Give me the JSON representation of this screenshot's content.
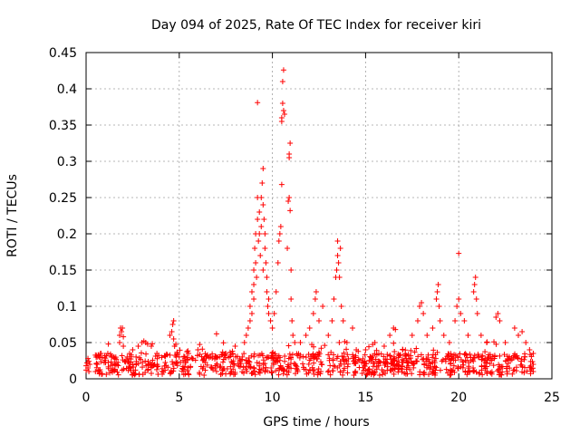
{
  "chart_data": {
    "type": "scatter",
    "title": "Day 094 of 2025, Rate Of TEC Index for receiver kiri",
    "xlabel": "GPS time / hours",
    "ylabel": "ROTI / TECUs",
    "xlim": [
      0,
      25
    ],
    "ylim": [
      0,
      0.45
    ],
    "x_ticks": [
      "0",
      "5",
      "10",
      "15",
      "20",
      "25"
    ],
    "y_ticks": [
      "0",
      "0.05",
      "0.1",
      "0.15",
      "0.2",
      "0.25",
      "0.3",
      "0.35",
      "0.4",
      "0.45"
    ],
    "grid": true,
    "marker": "+",
    "color": "#ff0000",
    "baseline_range": [
      0.005,
      0.035
    ],
    "series": [
      {
        "name": "ROTI",
        "points": [
          [
            0.0,
            0.012
          ],
          [
            0.0,
            0.018
          ],
          [
            0.05,
            0.022
          ],
          [
            0.1,
            0.015
          ],
          [
            0.1,
            0.028
          ],
          [
            0.15,
            0.01
          ],
          [
            0.15,
            0.024
          ],
          [
            0.2,
            0.02
          ],
          [
            0.5,
            0.01
          ],
          [
            0.6,
            0.02
          ],
          [
            0.7,
            0.03
          ],
          [
            0.8,
            0.035
          ],
          [
            1.0,
            0.032
          ],
          [
            1.5,
            0.03
          ],
          [
            1.8,
            0.05
          ],
          [
            1.8,
            0.06
          ],
          [
            1.85,
            0.07
          ],
          [
            1.9,
            0.065
          ],
          [
            1.95,
            0.07
          ],
          [
            2.0,
            0.058
          ],
          [
            2.0,
            0.045
          ],
          [
            2.5,
            0.04
          ],
          [
            2.8,
            0.045
          ],
          [
            3.0,
            0.05
          ],
          [
            3.1,
            0.052
          ],
          [
            3.2,
            0.05
          ],
          [
            3.3,
            0.048
          ],
          [
            3.5,
            0.045
          ],
          [
            3.8,
            0.035
          ],
          [
            4.5,
            0.06
          ],
          [
            4.6,
            0.065
          ],
          [
            4.65,
            0.075
          ],
          [
            4.7,
            0.08
          ],
          [
            4.7,
            0.055
          ],
          [
            4.75,
            0.045
          ],
          [
            5.5,
            0.035
          ],
          [
            6.0,
            0.04
          ],
          [
            6.5,
            0.032
          ],
          [
            7.0,
            0.062
          ],
          [
            7.5,
            0.035
          ],
          [
            8.0,
            0.045
          ],
          [
            8.5,
            0.05
          ],
          [
            8.6,
            0.06
          ],
          [
            8.7,
            0.07
          ],
          [
            8.8,
            0.08
          ],
          [
            8.8,
            0.1
          ],
          [
            8.9,
            0.12
          ],
          [
            8.9,
            0.09
          ],
          [
            9.0,
            0.13
          ],
          [
            9.0,
            0.15
          ],
          [
            9.0,
            0.11
          ],
          [
            9.05,
            0.18
          ],
          [
            9.1,
            0.16
          ],
          [
            9.1,
            0.2
          ],
          [
            9.15,
            0.14
          ],
          [
            9.2,
            0.22
          ],
          [
            9.2,
            0.25
          ],
          [
            9.2,
            0.381
          ],
          [
            9.25,
            0.19
          ],
          [
            9.3,
            0.2
          ],
          [
            9.3,
            0.23
          ],
          [
            9.35,
            0.17
          ],
          [
            9.4,
            0.21
          ],
          [
            9.4,
            0.25
          ],
          [
            9.45,
            0.27
          ],
          [
            9.5,
            0.29
          ],
          [
            9.5,
            0.24
          ],
          [
            9.5,
            0.15
          ],
          [
            9.55,
            0.22
          ],
          [
            9.6,
            0.2
          ],
          [
            9.6,
            0.18
          ],
          [
            9.65,
            0.16
          ],
          [
            9.7,
            0.14
          ],
          [
            9.7,
            0.12
          ],
          [
            9.75,
            0.1
          ],
          [
            9.8,
            0.09
          ],
          [
            9.8,
            0.11
          ],
          [
            9.9,
            0.08
          ],
          [
            10.0,
            0.07
          ],
          [
            10.1,
            0.09
          ],
          [
            10.2,
            0.12
          ],
          [
            10.3,
            0.16
          ],
          [
            10.35,
            0.19
          ],
          [
            10.4,
            0.2
          ],
          [
            10.45,
            0.21
          ],
          [
            10.5,
            0.268
          ],
          [
            10.5,
            0.355
          ],
          [
            10.5,
            0.36
          ],
          [
            10.55,
            0.38
          ],
          [
            10.55,
            0.41
          ],
          [
            10.6,
            0.426
          ],
          [
            10.6,
            0.37
          ],
          [
            10.65,
            0.365
          ],
          [
            10.8,
            0.18
          ],
          [
            10.85,
            0.245
          ],
          [
            10.9,
            0.25
          ],
          [
            10.9,
            0.305
          ],
          [
            10.9,
            0.31
          ],
          [
            10.95,
            0.325
          ],
          [
            10.95,
            0.232
          ],
          [
            11.0,
            0.15
          ],
          [
            11.0,
            0.11
          ],
          [
            11.05,
            0.08
          ],
          [
            11.1,
            0.06
          ],
          [
            11.2,
            0.05
          ],
          [
            11.5,
            0.05
          ],
          [
            11.8,
            0.06
          ],
          [
            12.0,
            0.07
          ],
          [
            12.2,
            0.09
          ],
          [
            12.3,
            0.11
          ],
          [
            12.35,
            0.12
          ],
          [
            12.5,
            0.08
          ],
          [
            12.7,
            0.1
          ],
          [
            13.0,
            0.06
          ],
          [
            13.2,
            0.08
          ],
          [
            13.3,
            0.11
          ],
          [
            13.4,
            0.14
          ],
          [
            13.45,
            0.15
          ],
          [
            13.5,
            0.17
          ],
          [
            13.5,
            0.19
          ],
          [
            13.55,
            0.16
          ],
          [
            13.6,
            0.14
          ],
          [
            13.65,
            0.18
          ],
          [
            13.7,
            0.1
          ],
          [
            13.8,
            0.08
          ],
          [
            14.0,
            0.05
          ],
          [
            14.3,
            0.07
          ],
          [
            14.5,
            0.04
          ],
          [
            15.0,
            0.04
          ],
          [
            15.5,
            0.05
          ],
          [
            16.0,
            0.045
          ],
          [
            16.3,
            0.06
          ],
          [
            16.5,
            0.07
          ],
          [
            16.6,
            0.068
          ],
          [
            17.0,
            0.04
          ],
          [
            17.5,
            0.06
          ],
          [
            17.8,
            0.08
          ],
          [
            17.9,
            0.1
          ],
          [
            18.0,
            0.105
          ],
          [
            18.1,
            0.09
          ],
          [
            18.3,
            0.06
          ],
          [
            18.6,
            0.07
          ],
          [
            18.8,
            0.11
          ],
          [
            18.85,
            0.12
          ],
          [
            18.9,
            0.13
          ],
          [
            18.95,
            0.1
          ],
          [
            19.0,
            0.08
          ],
          [
            19.2,
            0.06
          ],
          [
            19.5,
            0.05
          ],
          [
            19.8,
            0.08
          ],
          [
            19.9,
            0.1
          ],
          [
            20.0,
            0.173
          ],
          [
            20.0,
            0.11
          ],
          [
            20.1,
            0.09
          ],
          [
            20.3,
            0.08
          ],
          [
            20.5,
            0.06
          ],
          [
            20.8,
            0.12
          ],
          [
            20.85,
            0.13
          ],
          [
            20.9,
            0.14
          ],
          [
            20.95,
            0.11
          ],
          [
            21.0,
            0.09
          ],
          [
            21.2,
            0.06
          ],
          [
            21.5,
            0.05
          ],
          [
            22.0,
            0.085
          ],
          [
            22.1,
            0.09
          ],
          [
            22.2,
            0.08
          ],
          [
            22.5,
            0.05
          ],
          [
            23.0,
            0.07
          ],
          [
            23.2,
            0.06
          ],
          [
            23.4,
            0.065
          ],
          [
            23.6,
            0.05
          ],
          [
            23.8,
            0.04
          ],
          [
            24.0,
            0.035
          ],
          [
            24.0,
            0.02
          ],
          [
            24.0,
            0.01
          ]
        ]
      }
    ]
  }
}
